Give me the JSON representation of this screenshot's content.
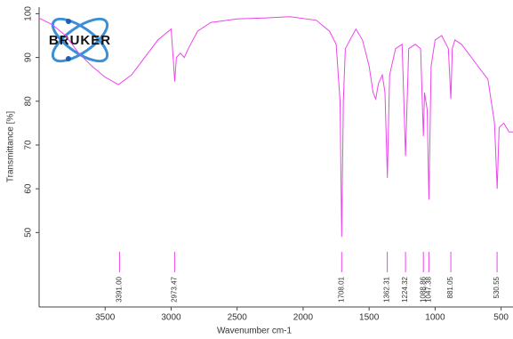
{
  "chart_data": {
    "type": "line",
    "xlabel": "Wavenumber cm-1",
    "ylabel": "Transmittance [%]",
    "logo": "BRUKER",
    "color": "#ee44ee",
    "xlim": [
      4000,
      410
    ],
    "ylim": [
      33,
      101.5
    ],
    "xticks": [
      3500,
      3000,
      2500,
      2000,
      1500,
      1000,
      500
    ],
    "yticks": [
      50,
      60,
      70,
      80,
      90,
      100
    ],
    "x": [
      4000,
      3900,
      3800,
      3700,
      3600,
      3500,
      3400,
      3300,
      3200,
      3100,
      3000,
      2980,
      2973,
      2960,
      2930,
      2900,
      2870,
      2800,
      2700,
      2500,
      2300,
      2100,
      1900,
      1800,
      1750,
      1720,
      1708,
      1695,
      1680,
      1600,
      1550,
      1500,
      1470,
      1450,
      1430,
      1400,
      1380,
      1362,
      1345,
      1300,
      1250,
      1224,
      1200,
      1150,
      1110,
      1089,
      1080,
      1060,
      1047,
      1030,
      1000,
      950,
      900,
      881,
      870,
      850,
      800,
      700,
      600,
      550,
      530,
      515,
      480,
      440,
      410
    ],
    "y": [
      99,
      97.5,
      95,
      91,
      88,
      85.5,
      83.8,
      86,
      90,
      94,
      96.5,
      88,
      84.5,
      90,
      91,
      90,
      92,
      96,
      98,
      98.8,
      99,
      99.3,
      98.5,
      96,
      93,
      80,
      49,
      80,
      92,
      96.5,
      94,
      88,
      82,
      80.5,
      84,
      86,
      82,
      62.5,
      86,
      92,
      93,
      67.5,
      92,
      93,
      92,
      72,
      82,
      78,
      57.5,
      88,
      94,
      95,
      92,
      80.5,
      92,
      94,
      93,
      89,
      85,
      75,
      60,
      74,
      75,
      73,
      73
    ],
    "peaks": [
      {
        "value": 3391,
        "label": "3391.00"
      },
      {
        "value": 2973.47,
        "label": "2973.47"
      },
      {
        "value": 1708.01,
        "label": "1708.01"
      },
      {
        "value": 1362.31,
        "label": "1362.31"
      },
      {
        "value": 1224.32,
        "label": "1224.32"
      },
      {
        "value": 1088.86,
        "label": "1088.86"
      },
      {
        "value": 1047.38,
        "label": "1047.38"
      },
      {
        "value": 881.05,
        "label": "881.05"
      },
      {
        "value": 530.55,
        "label": "530.55"
      }
    ]
  }
}
